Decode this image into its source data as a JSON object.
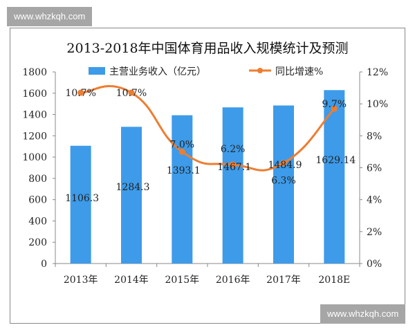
{
  "watermark_top": "www.whzkqh.com",
  "watermark_bottom": "www.whzkqh.com",
  "chart_data": {
    "type": "bar+line",
    "title": "2013-2018年中国体育用品收入规模统计及预测",
    "categories": [
      "2013年",
      "2014年",
      "2015年",
      "2016年",
      "2017年",
      "2018E"
    ],
    "series": [
      {
        "name": "主营业务收入（亿元）",
        "type": "bar",
        "axis": "left",
        "color": "#3d9be9",
        "values": [
          1106.3,
          1284.3,
          1393.1,
          1467.1,
          1484.9,
          1629.14
        ],
        "labels": [
          "1106.3",
          "1284.3",
          "1393.1",
          "1467.1",
          "1484.9",
          "1629.14"
        ]
      },
      {
        "name": "同比增速%",
        "type": "line",
        "axis": "right",
        "color": "#ed7d31",
        "values": [
          10.7,
          10.7,
          7.0,
          6.2,
          6.3,
          9.7
        ],
        "labels": [
          "10.7%",
          "10.7%",
          "7.0%",
          "6.2%",
          "6.3%",
          "9.7%"
        ]
      }
    ],
    "y_left": {
      "range": [
        0,
        1800
      ],
      "ticks": [
        "0",
        "200",
        "400",
        "600",
        "800",
        "1000",
        "1200",
        "1400",
        "1600",
        "1800"
      ]
    },
    "y_right": {
      "range": [
        0,
        12
      ],
      "ticks": [
        "0%",
        "2%",
        "4%",
        "6%",
        "8%",
        "10%",
        "12%"
      ]
    },
    "legend": "top",
    "grid": false
  }
}
